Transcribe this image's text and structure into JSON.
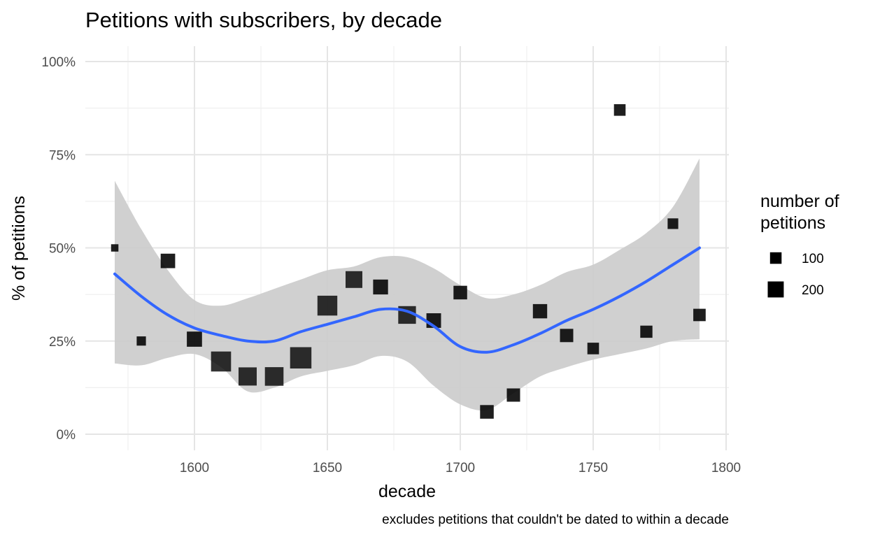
{
  "chart_data": {
    "type": "scatter",
    "title": "Petitions with subscribers, by decade",
    "xlabel": "decade",
    "ylabel": "% of petitions",
    "caption": "excludes petitions that couldn't be dated to within a decade",
    "xlim": [
      1560,
      1800
    ],
    "ylim": [
      0,
      1
    ],
    "x_ticks": [
      1600,
      1650,
      1700,
      1750,
      1800
    ],
    "x_tick_labels": [
      "1600",
      "1650",
      "1700",
      "1750",
      "1800"
    ],
    "y_ticks": [
      0,
      0.25,
      0.5,
      0.75,
      1.0
    ],
    "y_tick_labels": [
      "0%",
      "25%",
      "50%",
      "75%",
      "100%"
    ],
    "grid": true,
    "legend": {
      "title": "number of petitions",
      "title_lines": [
        "number of",
        "petitions"
      ],
      "placement": "right",
      "entries": [
        {
          "label": "100",
          "value": 100
        },
        {
          "label": "200",
          "value": 200
        }
      ]
    },
    "points": [
      {
        "decade": 1570,
        "pct": 0.5,
        "n": 5
      },
      {
        "decade": 1580,
        "pct": 0.25,
        "n": 16
      },
      {
        "decade": 1590,
        "pct": 0.465,
        "n": 78
      },
      {
        "decade": 1600,
        "pct": 0.255,
        "n": 90
      },
      {
        "decade": 1610,
        "pct": 0.195,
        "n": 195
      },
      {
        "decade": 1620,
        "pct": 0.155,
        "n": 150
      },
      {
        "decade": 1630,
        "pct": 0.155,
        "n": 160
      },
      {
        "decade": 1640,
        "pct": 0.205,
        "n": 230
      },
      {
        "decade": 1650,
        "pct": 0.345,
        "n": 190
      },
      {
        "decade": 1660,
        "pct": 0.415,
        "n": 120
      },
      {
        "decade": 1670,
        "pct": 0.395,
        "n": 85
      },
      {
        "decade": 1680,
        "pct": 0.32,
        "n": 140
      },
      {
        "decade": 1690,
        "pct": 0.305,
        "n": 80
      },
      {
        "decade": 1700,
        "pct": 0.38,
        "n": 65
      },
      {
        "decade": 1710,
        "pct": 0.06,
        "n": 65
      },
      {
        "decade": 1720,
        "pct": 0.105,
        "n": 60
      },
      {
        "decade": 1730,
        "pct": 0.33,
        "n": 75
      },
      {
        "decade": 1740,
        "pct": 0.265,
        "n": 60
      },
      {
        "decade": 1750,
        "pct": 0.23,
        "n": 38
      },
      {
        "decade": 1760,
        "pct": 0.87,
        "n": 38
      },
      {
        "decade": 1770,
        "pct": 0.275,
        "n": 45
      },
      {
        "decade": 1780,
        "pct": 0.565,
        "n": 28
      },
      {
        "decade": 1790,
        "pct": 0.32,
        "n": 48
      }
    ],
    "smooth": {
      "method": "loess",
      "color": "#3366ff",
      "x": [
        1570,
        1580,
        1590,
        1600,
        1610,
        1620,
        1630,
        1640,
        1650,
        1660,
        1670,
        1680,
        1690,
        1700,
        1710,
        1720,
        1730,
        1740,
        1750,
        1760,
        1770,
        1780,
        1790
      ],
      "y": [
        0.43,
        0.37,
        0.32,
        0.285,
        0.265,
        0.25,
        0.25,
        0.275,
        0.295,
        0.315,
        0.335,
        0.33,
        0.29,
        0.235,
        0.22,
        0.24,
        0.27,
        0.305,
        0.335,
        0.37,
        0.41,
        0.455,
        0.5
      ],
      "ci_low": [
        0.19,
        0.185,
        0.205,
        0.215,
        0.18,
        0.115,
        0.125,
        0.155,
        0.17,
        0.185,
        0.21,
        0.195,
        0.13,
        0.08,
        0.065,
        0.11,
        0.155,
        0.18,
        0.2,
        0.215,
        0.23,
        0.25,
        0.255
      ],
      "ci_high": [
        0.68,
        0.55,
        0.44,
        0.36,
        0.345,
        0.365,
        0.39,
        0.415,
        0.44,
        0.45,
        0.475,
        0.475,
        0.445,
        0.4,
        0.365,
        0.375,
        0.4,
        0.435,
        0.455,
        0.495,
        0.54,
        0.61,
        0.74
      ],
      "ci_color": "#cccccc"
    },
    "point_color": "#000000"
  }
}
